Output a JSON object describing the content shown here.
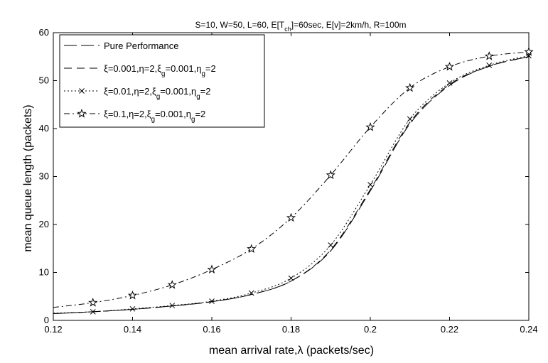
{
  "chart_data": {
    "type": "line",
    "title": "S=10, W=50, L=60, E[T_ch]=60sec, E[v]=2km/h, R=100m",
    "xlabel": "mean arrival rate,λ (packets/sec)",
    "ylabel": "mean queue length (packets)",
    "xlim": [
      0.12,
      0.24
    ],
    "ylim": [
      0,
      60
    ],
    "xticks": [
      "0.12",
      "0.14",
      "0.16",
      "0.18",
      "0.2",
      "0.22",
      "0.24"
    ],
    "yticks": [
      "0",
      "10",
      "20",
      "30",
      "40",
      "50",
      "60"
    ],
    "grid": false,
    "legend_position": "top-left",
    "x": [
      0.12,
      0.13,
      0.14,
      0.15,
      0.16,
      0.17,
      0.18,
      0.19,
      0.2,
      0.21,
      0.22,
      0.23,
      0.24
    ],
    "series": [
      {
        "name": "Pure Performance",
        "values": [
          1.4,
          1.8,
          2.3,
          3.0,
          3.9,
          5.4,
          8.2,
          14.5,
          27.0,
          41.0,
          49.0,
          53.0,
          55.0
        ],
        "style": "long-dash",
        "marker": "none"
      },
      {
        "name": "ξ=0.001,η=2,ξ_g=0.001,η_g=2",
        "values": [
          1.4,
          1.8,
          2.3,
          3.0,
          3.9,
          5.4,
          8.2,
          14.7,
          27.3,
          41.3,
          49.2,
          53.0,
          55.0
        ],
        "style": "dash",
        "marker": "none"
      },
      {
        "name": "ξ=0.01,η=2,ξ_g=0.001,η_g=2",
        "values": [
          1.5,
          1.8,
          2.4,
          3.1,
          4.0,
          5.7,
          8.8,
          15.7,
          28.3,
          42.0,
          49.5,
          53.2,
          55.2
        ],
        "style": "dotted",
        "marker": "x"
      },
      {
        "name": "ξ=0.1,η=2,ξ_g=0.001,η_g=2",
        "values": [
          2.7,
          3.7,
          5.2,
          7.4,
          10.6,
          14.9,
          21.4,
          30.3,
          40.3,
          48.5,
          52.9,
          55.1,
          56.0
        ],
        "style": "dash-dot",
        "marker": "star"
      }
    ]
  }
}
